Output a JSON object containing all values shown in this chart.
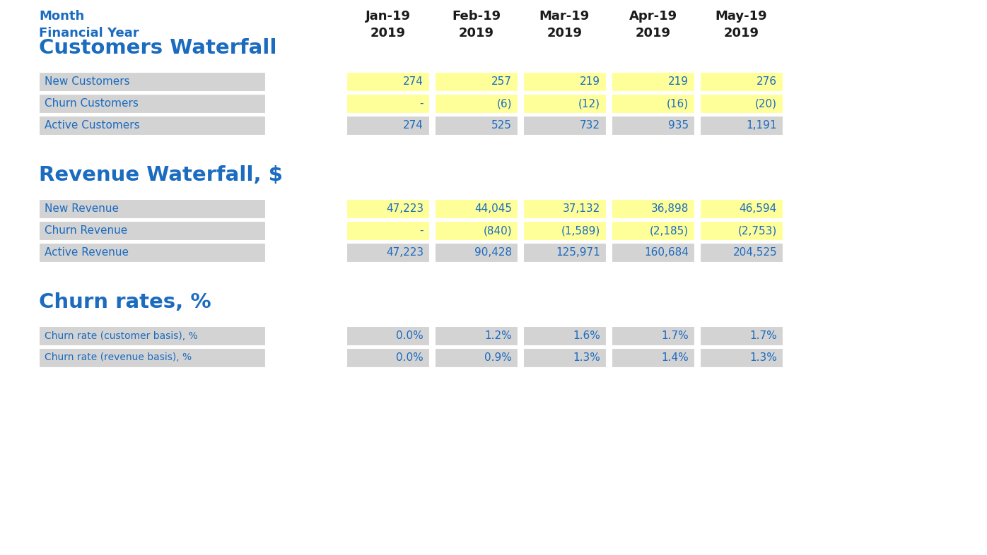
{
  "background_color": "#ffffff",
  "header_label1": "Month",
  "header_label2": "Financial Year",
  "header_color": "#1B6BBF",
  "col_headers": [
    [
      "Jan-19",
      "2019"
    ],
    [
      "Feb-19",
      "2019"
    ],
    [
      "Mar-19",
      "2019"
    ],
    [
      "Apr-19",
      "2019"
    ],
    [
      "May-19",
      "2019"
    ]
  ],
  "col_header_color": "#1a1a1a",
  "section1_title": "Customers Waterfall",
  "section2_title": "Revenue Waterfall, $",
  "section3_title": "Churn rates, %",
  "section_title_color": "#1B6BBF",
  "row_label_bg": "#D3D3D3",
  "row_label_color": "#1B6BBF",
  "yellow_bg": "#FFFF99",
  "gray_bg": "#D3D3D3",
  "data_color": "#1B6BBF",
  "white_bg": "#ffffff",
  "customers_rows": [
    {
      "label": "New Customers",
      "values": [
        "274",
        "257",
        "219",
        "219",
        "276"
      ],
      "bg": "#FFFF99"
    },
    {
      "label": "Churn Customers",
      "values": [
        "-",
        "(6)",
        "(12)",
        "(16)",
        "(20)"
      ],
      "bg": "#FFFF99"
    },
    {
      "label": "Active Customers",
      "values": [
        "274",
        "525",
        "732",
        "935",
        "1,191"
      ],
      "bg": "#D3D3D3"
    }
  ],
  "revenue_rows": [
    {
      "label": "New Revenue",
      "values": [
        "47,223",
        "44,045",
        "37,132",
        "36,898",
        "46,594"
      ],
      "bg": "#FFFF99"
    },
    {
      "label": "Churn Revenue",
      "values": [
        "-",
        "(840)",
        "(1,589)",
        "(2,185)",
        "(2,753)"
      ],
      "bg": "#FFFF99"
    },
    {
      "label": "Active Revenue",
      "values": [
        "47,223",
        "90,428",
        "125,971",
        "160,684",
        "204,525"
      ],
      "bg": "#D3D3D3"
    }
  ],
  "churn_rows": [
    {
      "label": "Churn rate (customer basis), %",
      "values": [
        "0.0%",
        "1.2%",
        "1.6%",
        "1.7%",
        "1.7%"
      ],
      "bg": "#D3D3D3"
    },
    {
      "label": "Churn rate (revenue basis), %",
      "values": [
        "0.0%",
        "0.9%",
        "1.3%",
        "1.4%",
        "1.3%"
      ],
      "bg": "#D3D3D3"
    }
  ]
}
